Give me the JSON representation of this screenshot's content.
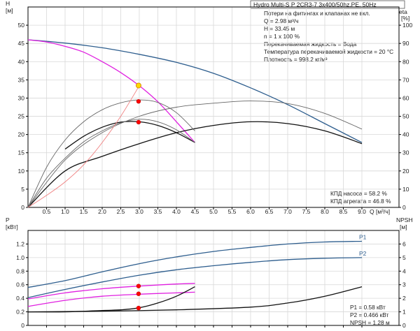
{
  "title_box": "Hydro Multi-S P 2CR3-7 3x400/50hz,PE, 50Hz",
  "info_lines": [
    "Потери на фитингах и клапанах не вкл.",
    "Q = 2.98 м³/ч",
    "H = 33.45 м",
    "n = 1 x 100 %",
    "Перекачиваемая жидкость = Вода",
    "Температура перекачиваемой жидкости = 20 °C",
    "Плотность = 998.2 кг/м³"
  ],
  "efficiency_info": [
    "КПД насоса = 58.2 %",
    "КПД агрегата = 46.8 %"
  ],
  "power_info": [
    "P1 = 0.58 кВт",
    "P2 = 0.466 кВт",
    "NPSH = 1.28 м"
  ],
  "colors": {
    "curve_blue": "#2e5e8e",
    "curve_magenta": "#e020e0",
    "curve_black": "#111111",
    "curve_gray": "#666666",
    "system_curve": "#f08080",
    "duty_point": "#ff0000",
    "duty_point_yellow": "#ffd700"
  },
  "chart_data": [
    {
      "type": "line",
      "name": "head-efficiency",
      "left_axis_label": "H",
      "left_axis_unit": "[м]",
      "right_axis_label": "eta",
      "right_axis_unit": "[%]",
      "xlabel": "Q [м³/ч]",
      "xlim": [
        0,
        10
      ],
      "ylim_left": [
        0,
        55
      ],
      "ylim_right": [
        0,
        110
      ],
      "x_ticks": [
        "0.5",
        "1.0",
        "1.5",
        "2.0",
        "2.5",
        "3.0",
        "3.5",
        "4.0",
        "4.5",
        "5.0",
        "5.5",
        "6.0",
        "6.5",
        "7.0",
        "7.5",
        "8.0",
        "8.5",
        "9.0"
      ],
      "y_ticks_left": [
        "0",
        "5",
        "10",
        "15",
        "20",
        "25",
        "30",
        "35",
        "40",
        "45",
        "50"
      ],
      "y_ticks_right": [
        "0",
        "10",
        "20",
        "30",
        "40",
        "50",
        "60",
        "70",
        "80",
        "90",
        "100"
      ],
      "grid": true,
      "series": [
        {
          "color": "blue",
          "x": [
            0,
            1,
            2,
            3,
            4,
            5,
            6,
            7,
            8,
            9
          ],
          "y": [
            46,
            45.1,
            43.8,
            42,
            39.8,
            36.8,
            32.8,
            28.2,
            23,
            17.8
          ]
        },
        {
          "color": "magenta",
          "x": [
            0,
            0.5,
            1,
            1.5,
            2,
            2.5,
            3,
            3.5,
            4,
            4.5
          ],
          "y": [
            46,
            45.4,
            44.2,
            42.6,
            40,
            37,
            33.4,
            29,
            23.5,
            17.8
          ]
        },
        {
          "color": "black",
          "x": [
            1,
            1.5,
            2,
            2.5,
            3,
            3.5,
            4,
            4.5
          ],
          "y": [
            16,
            19.5,
            22,
            23.4,
            23.5,
            22.5,
            20.5,
            17.8
          ]
        },
        {
          "color": "black",
          "x": [
            0,
            1,
            2,
            3,
            4,
            5,
            6,
            7,
            8,
            9
          ],
          "y": [
            0,
            10,
            14,
            17.5,
            20.5,
            22.5,
            23.5,
            23,
            21,
            17.5
          ]
        },
        {
          "color": "gray",
          "x": [
            0,
            0.5,
            1,
            1.5,
            2,
            2.5,
            3,
            3.5,
            4,
            4.5
          ],
          "y": [
            0,
            11,
            18.5,
            23.5,
            26.8,
            28.7,
            29.5,
            28.8,
            26,
            21
          ]
        },
        {
          "color": "gray",
          "x": [
            0,
            0.5,
            1,
            1.5,
            2,
            2.5,
            3,
            3.5,
            4,
            4.5
          ],
          "y": [
            0,
            8,
            13.5,
            18,
            21,
            23.2,
            24.2,
            23.5,
            21.3,
            17.8
          ]
        },
        {
          "color": "gray",
          "x": [
            0,
            1,
            2,
            3,
            4,
            5,
            6,
            7,
            8,
            9
          ],
          "y": [
            0,
            13,
            20.5,
            25,
            27.5,
            28.6,
            29.2,
            28.5,
            25.8,
            21.5
          ]
        },
        {
          "color": "system",
          "x": [
            0,
            0.5,
            1,
            1.5,
            2,
            2.5,
            3
          ],
          "y": [
            0,
            3.3,
            7,
            11.7,
            17.8,
            25,
            33.4
          ]
        }
      ],
      "duty_points": [
        {
          "x": 2.98,
          "y": 33.45,
          "color": "yellow"
        },
        {
          "x": 2.98,
          "y": 29.1,
          "color": "red"
        },
        {
          "x": 2.98,
          "y": 23.4,
          "color": "red"
        }
      ]
    },
    {
      "type": "line",
      "name": "power-npsh",
      "left_axis_label": "P",
      "left_axis_unit": "[кВт]",
      "right_axis_label": "NPSH",
      "right_axis_unit": "[м]",
      "xlim": [
        0,
        10
      ],
      "ylim_left": [
        0,
        1.4
      ],
      "ylim_right": [
        0,
        7
      ],
      "y_ticks_left": [
        "0",
        "0.2",
        "0.4",
        "0.6",
        "0.8",
        "1.0",
        "1.2"
      ],
      "y_ticks_right": [
        "0",
        "1",
        "2",
        "3",
        "4",
        "5",
        "6"
      ],
      "grid": true,
      "series": [
        {
          "name": "P1",
          "color": "blue",
          "x": [
            0,
            1,
            2,
            3,
            4,
            5,
            6,
            7,
            8,
            9
          ],
          "y": [
            0.56,
            0.66,
            0.79,
            0.91,
            1.01,
            1.09,
            1.15,
            1.2,
            1.23,
            1.24
          ]
        },
        {
          "name": "P2",
          "color": "blue",
          "x": [
            0,
            1,
            2,
            3,
            4,
            5,
            6,
            7,
            8,
            9
          ],
          "y": [
            0.41,
            0.53,
            0.64,
            0.74,
            0.82,
            0.88,
            0.93,
            0.97,
            0.99,
            1.0
          ]
        },
        {
          "color": "magenta",
          "x": [
            0,
            1,
            2,
            3,
            4,
            4.5
          ],
          "y": [
            0.39,
            0.48,
            0.54,
            0.58,
            0.61,
            0.62
          ]
        },
        {
          "color": "magenta",
          "x": [
            0,
            1,
            2,
            3,
            4,
            4.5
          ],
          "y": [
            0.28,
            0.37,
            0.43,
            0.46,
            0.48,
            0.49
          ]
        },
        {
          "color": "black",
          "x": [
            0,
            1,
            2,
            2.5,
            3,
            3.5,
            4,
            4.5
          ],
          "y": [
            0.2,
            0.2,
            0.22,
            0.23,
            0.26,
            0.33,
            0.43,
            0.57
          ]
        },
        {
          "color": "black",
          "x": [
            0,
            2,
            4,
            6,
            7,
            8,
            9
          ],
          "y": [
            0.2,
            0.21,
            0.23,
            0.27,
            0.33,
            0.43,
            0.57
          ]
        }
      ],
      "duty_points": [
        {
          "x": 2.98,
          "y": 0.58,
          "color": "red"
        },
        {
          "x": 2.98,
          "y": 0.466,
          "color": "red"
        },
        {
          "x": 2.98,
          "y": 0.256,
          "color": "red"
        }
      ]
    }
  ]
}
